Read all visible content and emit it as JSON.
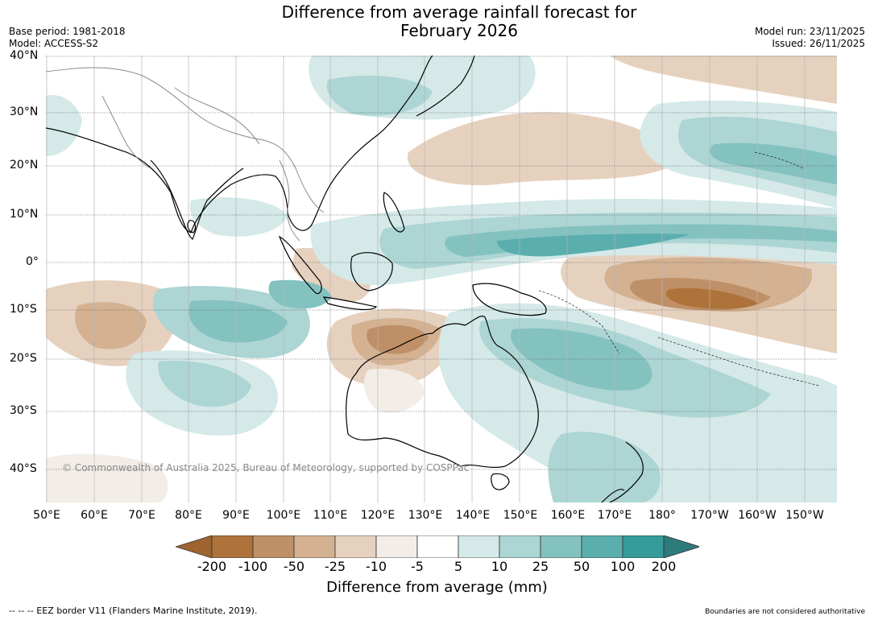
{
  "title_line1": "Difference from average rainfall forecast for",
  "title_line2": "February 2026",
  "base_period": "Base period: 1981-2018",
  "model": "Model: ACCESS-S2",
  "model_run": "Model run: 23/11/2025",
  "issued": "Issued: 26/11/2025",
  "copyright": "© Commonwealth of Australia 2025, Bureau of Meteorology, supported by COSPPac",
  "lat_labels": [
    "40°N",
    "30°N",
    "20°N",
    "10°N",
    "0°",
    "10°S",
    "20°S",
    "30°S",
    "40°S"
  ],
  "lon_labels": [
    "50°E",
    "60°E",
    "70°E",
    "80°E",
    "90°E",
    "100°E",
    "110°E",
    "120°E",
    "130°E",
    "140°E",
    "150°E",
    "160°E",
    "170°E",
    "180°",
    "170°W",
    "160°W",
    "150°W"
  ],
  "legend": {
    "ticks": [
      "-200",
      "-100",
      "-50",
      "-25",
      "-10",
      "-5",
      "5",
      "10",
      "25",
      "50",
      "100",
      "200"
    ],
    "colors": [
      "#9e6331",
      "#ad733b",
      "#bf9067",
      "#d3b191",
      "#e6d1bf",
      "#f3ede8",
      "#ffffff",
      "#d4e9e8",
      "#acd5d4",
      "#84c2c0",
      "#5baeae",
      "#369c9b",
      "#2d7b7a"
    ],
    "label": "Difference from average (mm)"
  },
  "footer_left": "--  --  -- EEZ border V11 (Flanders Marine Institute, 2019).",
  "footer_right": "Boundaries are not considered authoritative"
}
